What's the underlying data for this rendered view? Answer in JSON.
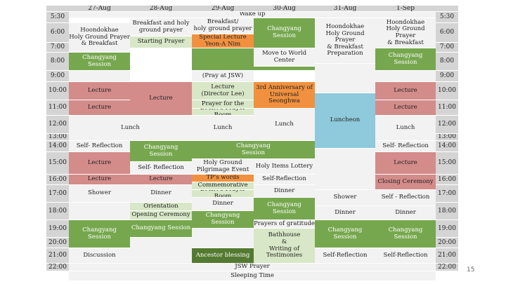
{
  "page_number": "15",
  "headers": [
    "27-Aug",
    "28-Aug",
    "29-Aug",
    "30-Aug",
    "31-Aug",
    "1-Sep"
  ],
  "times": [
    "5:30",
    "6:00",
    "7:00",
    "8:00",
    "9:00",
    "10:00",
    "11:00",
    "12:00",
    "13:00",
    "14:00",
    "15:00",
    "16:00",
    "17:00",
    "18:00",
    "19:00",
    "20:00",
    "21:00",
    "22:00"
  ],
  "events": {
    "wake_up": "Wake up",
    "c1_breakfast": "Hoondokhae\nHoly Ground Prayer\n& Breakfast",
    "c1_session": "Changyang\nSession",
    "c1_lecture1": "Lecture",
    "c1_lecture2": "Lecture",
    "c1_lunch": "Lunch",
    "c1_self_reflection": "Self- Reflection",
    "c1_lecture3": "Lecture",
    "c1_lecture4": "Lecture",
    "c1_shower": "Shower",
    "c1_session2": "Changyang\nSession",
    "c1_discussion": "Discussion",
    "c2_breakfast": "Breakfast and holy\nground prayer",
    "c2_starting_prayer": "Starting Prayer",
    "c2_lecture1": "Lecture",
    "c2_session": "Changyang\nSession",
    "c2_self_reflection": "Self- Reflection",
    "c2_lecture2": "Lecture",
    "c2_dinner": "Dinner",
    "c2_orientation": "Orientation",
    "c2_opening": "Opening Ceremony",
    "c2_session2": "Changyang Session",
    "c3_breakfast": "Breakfast/\nholy ground prayer",
    "c3_special_lecture": "Special Lecture\nYeon-A Nim",
    "c3_pray_at_jsw": "(Pray at JSW)",
    "c3_lecture": "Lecture\n(Director Lee)",
    "c3_prayer_for": "Prayer for the",
    "c3_dmin_room": "DMIN's Prayer Room",
    "c3_lunch": "Lunch",
    "c3_holy_ground": "Holy Ground\nPilgrimage Event",
    "c3_tps_words": "TP's words",
    "c3_commemorative": "Commemorative",
    "c3_dmin_room2": "DMIN's Prayer Room",
    "c3_dinner": "Dinner",
    "c3_session3": "Changyang\nSession",
    "c3_ancestor": "Ancestor blessing",
    "c34_session": "Changyang\nSession",
    "c4_changyang_top": "Changyang\nSession",
    "c4_move": "Move to World Center",
    "c4_anniversary": "3rd Anniversary of\nUniversal Seonghwa",
    "c4_lunch": "Lunch",
    "c4_holy_items": "Holy Items Lottery",
    "c4_self_reflection": "Self-Reflection",
    "c4_dinner": "Dinner",
    "c4_session": "Changyang\nSession",
    "c4_prayers": "Prayers of gratitude",
    "c4_bathhouse": "Bathhouse\n&\nWriting of\nTestimonies",
    "c5_breakfast": "Hoondokhae\nHoly Ground Prayer\n& Breakfast\nPreparation",
    "c5_luncheon": "Luncheon",
    "c5_shower": "Shower",
    "c5_dinner": "Dinner",
    "c5_session": "Changyang\nSession",
    "c5_self_reflection": "Self-Reflection",
    "c6_breakfast": "Hoondokhae\nHoly Ground Prayer\n& Breakfast",
    "c6_session": "Changyang\nSession",
    "c6_lecture1": "Lecture",
    "c6_lecture2": "Lecture",
    "c6_lunch": "Lunch",
    "c6_self_reflection": "Self- Reflection",
    "c6_lecture3": "Lecture",
    "c6_closing": "Closing Ceremony",
    "c6_self_reflection2": "Self - Reflection",
    "c6_dinner": "Dinner",
    "c6_session2": "Changyang\nSession",
    "c6_self_reflection3": "Self-Reflection",
    "jsw_prayer": "JSW Prayer",
    "sleeping_time": "Sleeping Time"
  }
}
